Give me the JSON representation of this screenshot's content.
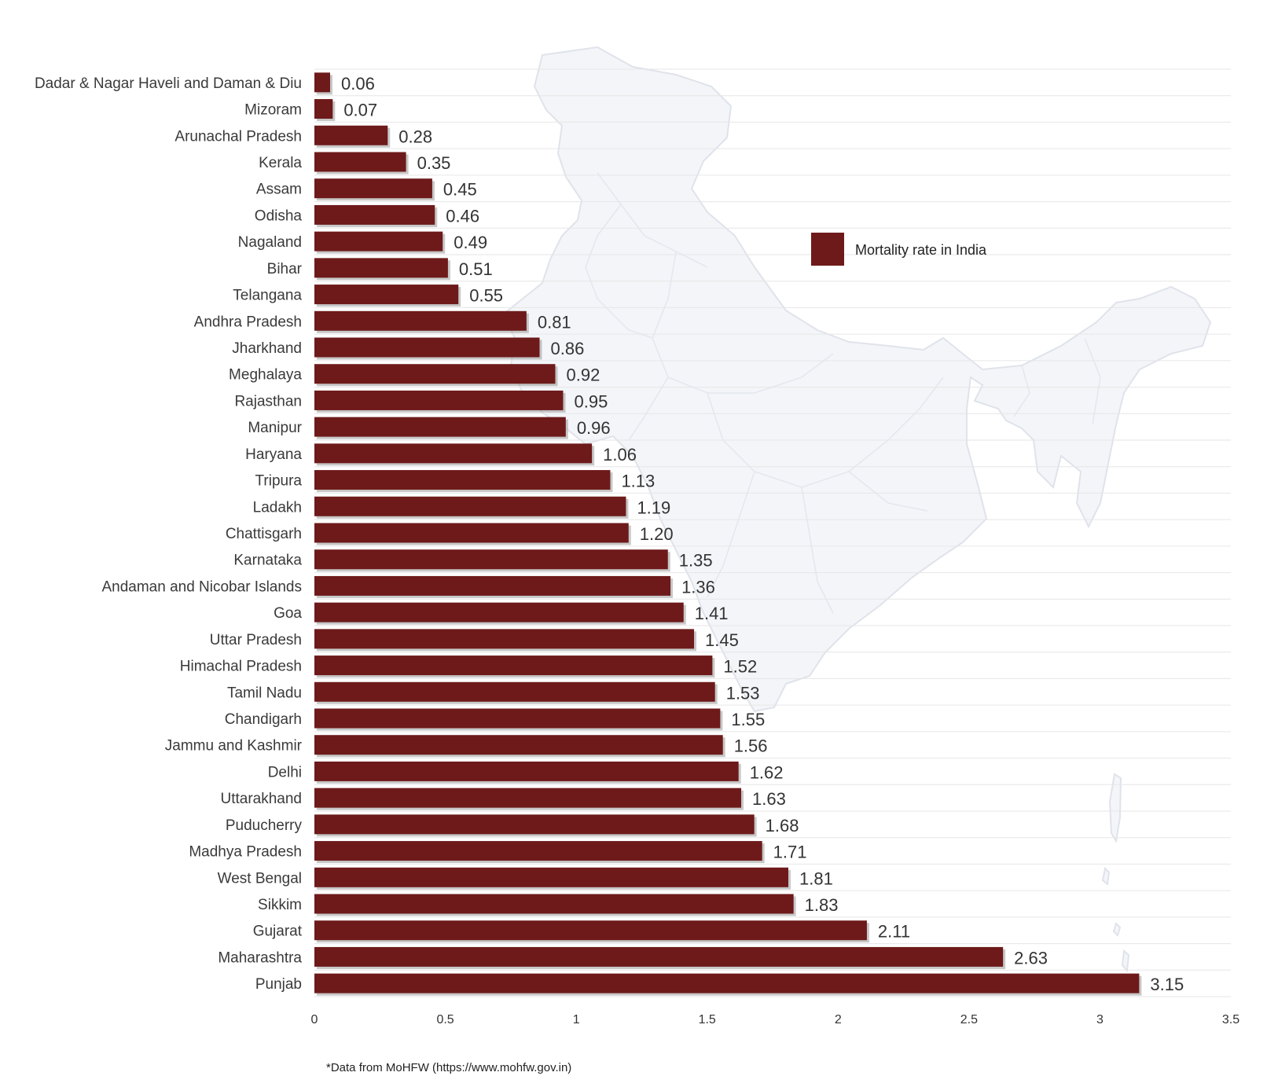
{
  "chart_data": {
    "type": "bar",
    "orientation": "horizontal",
    "categories": [
      "Dadar & Nagar Haveli and Daman & Diu",
      "Mizoram",
      "Arunachal Pradesh",
      "Kerala",
      "Assam",
      "Odisha",
      "Nagaland",
      "Bihar",
      "Telangana",
      "Andhra Pradesh",
      "Jharkhand",
      "Meghalaya",
      "Rajasthan",
      "Manipur",
      "Haryana",
      "Tripura",
      "Ladakh",
      "Chattisgarh",
      "Karnataka",
      "Andaman and Nicobar Islands",
      "Goa",
      "Uttar Pradesh",
      "Himachal Pradesh",
      "Tamil Nadu",
      "Chandigarh",
      "Jammu and Kashmir",
      "Delhi",
      "Uttarakhand",
      "Puducherry",
      "Madhya Pradesh",
      "West Bengal",
      "Sikkim",
      "Gujarat",
      "Maharashtra",
      "Punjab"
    ],
    "series": [
      {
        "name": "Mortality rate in India",
        "color": "#6e1a1a",
        "values": [
          0.06,
          0.07,
          0.28,
          0.35,
          0.45,
          0.46,
          0.49,
          0.51,
          0.55,
          0.81,
          0.86,
          0.92,
          0.95,
          0.96,
          1.06,
          1.13,
          1.19,
          1.2,
          1.35,
          1.36,
          1.41,
          1.45,
          1.52,
          1.53,
          1.55,
          1.56,
          1.62,
          1.63,
          1.68,
          1.71,
          1.81,
          1.83,
          2.11,
          2.63,
          3.15
        ],
        "labels": [
          "0.06",
          "0.07",
          "0.28",
          "0.35",
          "0.45",
          "0.46",
          "0.49",
          "0.51",
          "0.55",
          "0.81",
          "0.86",
          "0.92",
          "0.95",
          "0.96",
          "1.06",
          "1.13",
          "1.19",
          "1.20",
          "1.35",
          "1.36",
          "1.41",
          "1.45",
          "1.52",
          "1.53",
          "1.55",
          "1.56",
          "1.62",
          "1.63",
          "1.68",
          "1.71",
          "1.81",
          "1.83",
          "2.11",
          "2.63",
          "3.15"
        ]
      }
    ],
    "xticks": [
      "0",
      "0.5",
      "1",
      "1.5",
      "2",
      "2.5",
      "3",
      "3.5"
    ],
    "xlim": [
      0,
      3.5
    ],
    "grid": true,
    "legend_position": "center-right",
    "title": "",
    "xlabel": "",
    "ylabel": "",
    "background_image": "india-map-outline",
    "footnote": "*Data from MoHFW (https://www.mohfw.gov.in)"
  }
}
